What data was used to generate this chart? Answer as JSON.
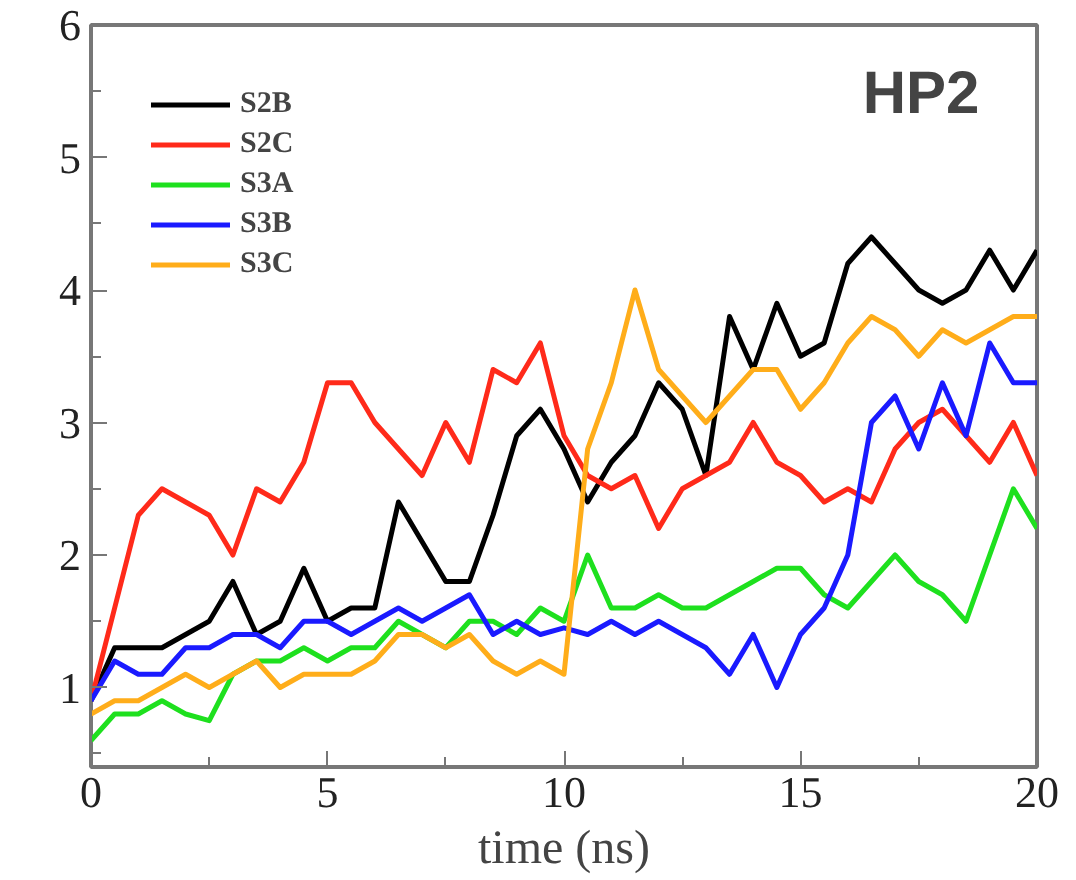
{
  "chart_data": {
    "type": "line",
    "xlabel": "time (ns)",
    "annotations": [
      "HP2"
    ],
    "x": [
      0,
      0.5,
      1,
      1.5,
      2,
      2.5,
      3,
      3.5,
      4,
      4.5,
      5,
      5.5,
      6,
      6.5,
      7,
      7.5,
      8,
      8.5,
      9,
      9.5,
      10,
      10.5,
      11,
      11.5,
      12,
      12.5,
      13,
      13.5,
      14,
      14.5,
      15,
      15.5,
      16,
      16.5,
      17,
      17.5,
      18,
      18.5,
      19,
      19.5,
      20
    ],
    "series": [
      {
        "name": "S2B",
        "color": "#000000",
        "values": [
          0.9,
          1.3,
          1.3,
          1.3,
          1.4,
          1.5,
          1.8,
          1.4,
          1.5,
          1.9,
          1.5,
          1.6,
          1.6,
          2.4,
          2.1,
          1.8,
          1.8,
          2.3,
          2.9,
          3.1,
          2.8,
          2.4,
          2.7,
          2.9,
          3.3,
          3.1,
          2.6,
          3.8,
          3.4,
          3.9,
          3.5,
          3.6,
          4.2,
          4.4,
          4.2,
          4.0,
          3.9,
          4.0,
          4.3,
          4.0,
          4.3
        ]
      },
      {
        "name": "S2C",
        "color": "#ff2a1a",
        "values": [
          0.9,
          1.6,
          2.3,
          2.5,
          2.4,
          2.3,
          2.0,
          2.5,
          2.4,
          2.7,
          3.3,
          3.3,
          3.0,
          2.8,
          2.6,
          3.0,
          2.7,
          3.4,
          3.3,
          3.6,
          2.9,
          2.6,
          2.5,
          2.6,
          2.2,
          2.5,
          2.6,
          2.7,
          3.0,
          2.7,
          2.6,
          2.4,
          2.5,
          2.4,
          2.8,
          3.0,
          3.1,
          2.9,
          2.7,
          3.0,
          2.6
        ]
      },
      {
        "name": "S3A",
        "color": "#1ee01e",
        "values": [
          0.6,
          0.8,
          0.8,
          0.9,
          0.8,
          0.75,
          1.1,
          1.2,
          1.2,
          1.3,
          1.2,
          1.3,
          1.3,
          1.5,
          1.4,
          1.3,
          1.5,
          1.5,
          1.4,
          1.6,
          1.5,
          2.0,
          1.6,
          1.6,
          1.7,
          1.6,
          1.6,
          1.7,
          1.8,
          1.9,
          1.9,
          1.7,
          1.6,
          1.8,
          2.0,
          1.8,
          1.7,
          1.5,
          2.0,
          2.5,
          2.2
        ]
      },
      {
        "name": "S3B",
        "color": "#1a1aff",
        "values": [
          0.9,
          1.2,
          1.1,
          1.1,
          1.3,
          1.3,
          1.4,
          1.4,
          1.3,
          1.5,
          1.5,
          1.4,
          1.5,
          1.6,
          1.5,
          1.6,
          1.7,
          1.4,
          1.5,
          1.4,
          1.45,
          1.4,
          1.5,
          1.4,
          1.5,
          1.4,
          1.3,
          1.1,
          1.4,
          1.0,
          1.4,
          1.6,
          2.0,
          3.0,
          3.2,
          2.8,
          3.3,
          2.9,
          3.6,
          3.3,
          3.3
        ]
      },
      {
        "name": "S3C",
        "color": "#ffad1a",
        "values": [
          0.8,
          0.9,
          0.9,
          1.0,
          1.1,
          1.0,
          1.1,
          1.2,
          1.0,
          1.1,
          1.1,
          1.1,
          1.2,
          1.4,
          1.4,
          1.3,
          1.4,
          1.2,
          1.1,
          1.2,
          1.1,
          2.8,
          3.3,
          4.0,
          3.4,
          3.2,
          3.0,
          3.2,
          3.4,
          3.4,
          3.1,
          3.3,
          3.6,
          3.8,
          3.7,
          3.5,
          3.7,
          3.6,
          3.7,
          3.8,
          3.8
        ]
      }
    ],
    "xlim": [
      0,
      20
    ],
    "ylim": [
      0.4,
      6
    ],
    "xticks": [
      0,
      {
        "value": 2.5,
        "label": null
      },
      5,
      {
        "value": 7.5,
        "label": null
      },
      10,
      {
        "value": 12.5,
        "label": null
      },
      15,
      {
        "value": 17.5,
        "label": null
      },
      20
    ],
    "yticks": [
      {
        "value": 0.5,
        "label": null
      },
      1,
      {
        "value": 1.5,
        "label": null
      },
      2,
      {
        "value": 2.5,
        "label": null
      },
      3,
      {
        "value": 3.5,
        "label": null
      },
      4,
      {
        "value": 4.5,
        "label": null
      },
      5,
      {
        "value": 5.5,
        "label": null
      },
      6
    ],
    "legend": "top left",
    "grid": false,
    "marker": "none",
    "line_style": "solid"
  }
}
